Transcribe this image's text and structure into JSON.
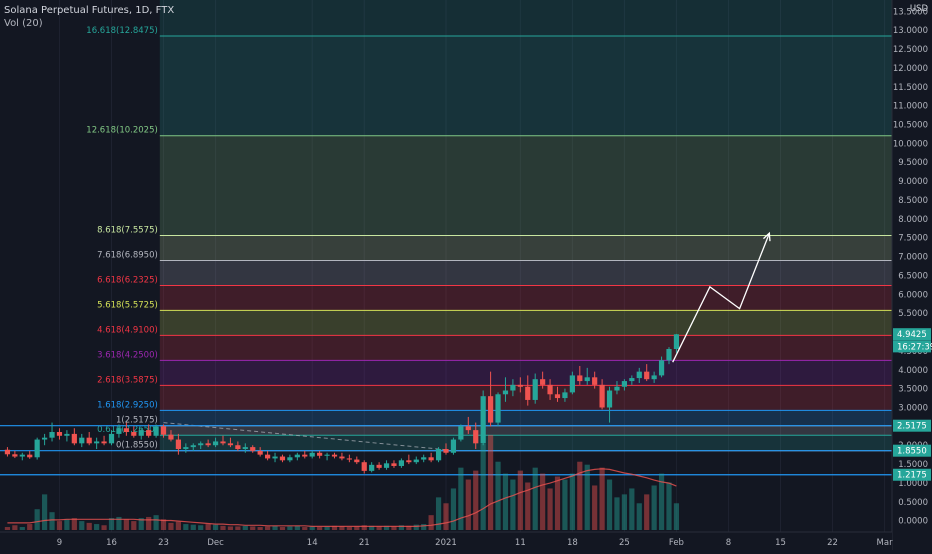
{
  "header": {
    "title": "Solana Perpetual Futures, 1D, FTX",
    "indicator": "Vol (20)",
    "currency": "USD"
  },
  "chart_data": {
    "type": "candlestick",
    "price_axis": {
      "ylim": [
        -0.3,
        13.8
      ],
      "ticks": [
        "13.5000",
        "13.0000",
        "12.5000",
        "12.0000",
        "11.5000",
        "11.0000",
        "10.5000",
        "10.0000",
        "9.5000",
        "9.0000",
        "8.5000",
        "8.0000",
        "7.5000",
        "7.0000",
        "6.5000",
        "6.0000",
        "5.5000",
        "5.0000",
        "4.5000",
        "4.0000",
        "3.5000",
        "3.0000",
        "2.5000",
        "2.0000",
        "1.5000",
        "1.0000",
        "0.5000",
        "0.0000"
      ],
      "tick_values": [
        13.5,
        13.0,
        12.5,
        12.0,
        11.5,
        11.0,
        10.5,
        10.0,
        9.5,
        9.0,
        8.5,
        8.0,
        7.5,
        7.0,
        6.5,
        6.0,
        5.5,
        5.0,
        4.5,
        4.0,
        3.5,
        3.0,
        2.5,
        2.0,
        1.5,
        1.0,
        0.5,
        0.0
      ]
    },
    "time_axis": {
      "labels": [
        "9",
        "16",
        "23",
        "Dec",
        "14",
        "21",
        "2021",
        "11",
        "18",
        "25",
        "Feb",
        "8",
        "15",
        "22",
        "Mar"
      ],
      "label_days": [
        -52,
        -45,
        -38,
        -31,
        -18,
        -11,
        0,
        10,
        17,
        24,
        31,
        38,
        45,
        52,
        59
      ],
      "xlim": [
        -60,
        60
      ]
    },
    "fib_levels": [
      {
        "label": "16.618(12.8475)",
        "value": 12.8475,
        "color": "#26a69a"
      },
      {
        "label": "12.618(10.2025)",
        "value": 10.2025,
        "color": "#81c784"
      },
      {
        "label": "8.618(7.5575)",
        "value": 7.5575,
        "color": "#c8e6a0"
      },
      {
        "label": "7.618(6.8950)",
        "value": 6.895,
        "color": "#b2b5be"
      },
      {
        "label": "6.618(6.2325)",
        "value": 6.2325,
        "color": "#f23645"
      },
      {
        "label": "5.618(5.5725)",
        "value": 5.5725,
        "color": "#d4e157"
      },
      {
        "label": "4.618(4.9100)",
        "value": 4.91,
        "color": "#f23645"
      },
      {
        "label": "3.618(4.2500)",
        "value": 4.25,
        "color": "#9c27b0"
      },
      {
        "label": "2.618(3.5875)",
        "value": 3.5875,
        "color": "#f23645"
      },
      {
        "label": "1.618(2.9250)",
        "value": 2.925,
        "color": "#2196f3"
      },
      {
        "label": "1(2.5175)",
        "value": 2.5175,
        "color": "#b2b5be"
      },
      {
        "label": "0.618(2.2650)",
        "value": 2.265,
        "color": "#26a69a"
      },
      {
        "label": "0(1.8550)",
        "value": 1.855,
        "color": "#b2b5be"
      }
    ],
    "price_badges": [
      {
        "label": "4.9425",
        "value": 4.9425,
        "bg": "#26a69a"
      },
      {
        "label": "16:27:39",
        "value": 4.62,
        "bg": "#26a69a"
      },
      {
        "label": "2.5175",
        "value": 2.5175,
        "bg": "#26a69a"
      },
      {
        "label": "1.8550",
        "value": 1.855,
        "bg": "#26a69a"
      },
      {
        "label": "1.2175",
        "value": 1.2175,
        "bg": "#26a69a"
      }
    ],
    "horizontal_lines": [
      2.5175,
      1.855,
      1.2175
    ],
    "fib_zone_start_day": -38.5,
    "candles": [
      {
        "d": -59,
        "o": 1.88,
        "h": 1.95,
        "l": 1.7,
        "c": 1.76
      },
      {
        "d": -58,
        "o": 1.76,
        "h": 1.85,
        "l": 1.66,
        "c": 1.7
      },
      {
        "d": -57,
        "o": 1.7,
        "h": 1.8,
        "l": 1.6,
        "c": 1.75
      },
      {
        "d": -56,
        "o": 1.75,
        "h": 1.85,
        "l": 1.64,
        "c": 1.68
      },
      {
        "d": -55,
        "o": 1.68,
        "h": 2.2,
        "l": 1.62,
        "c": 2.15
      },
      {
        "d": -54,
        "o": 2.15,
        "h": 2.3,
        "l": 2.0,
        "c": 2.2
      },
      {
        "d": -53,
        "o": 2.2,
        "h": 2.6,
        "l": 2.1,
        "c": 2.35
      },
      {
        "d": -52,
        "o": 2.35,
        "h": 2.45,
        "l": 2.15,
        "c": 2.25
      },
      {
        "d": -51,
        "o": 2.25,
        "h": 2.4,
        "l": 2.1,
        "c": 2.3
      },
      {
        "d": -50,
        "o": 2.3,
        "h": 2.45,
        "l": 2.0,
        "c": 2.05
      },
      {
        "d": -49,
        "o": 2.05,
        "h": 2.3,
        "l": 1.95,
        "c": 2.2
      },
      {
        "d": -48,
        "o": 2.2,
        "h": 2.35,
        "l": 2.0,
        "c": 2.05
      },
      {
        "d": -47,
        "o": 2.05,
        "h": 2.2,
        "l": 1.9,
        "c": 2.1
      },
      {
        "d": -46,
        "o": 2.1,
        "h": 2.25,
        "l": 2.0,
        "c": 2.05
      },
      {
        "d": -45,
        "o": 2.05,
        "h": 2.4,
        "l": 2.0,
        "c": 2.3
      },
      {
        "d": -44,
        "o": 2.3,
        "h": 2.55,
        "l": 2.2,
        "c": 2.45
      },
      {
        "d": -43,
        "o": 2.45,
        "h": 2.6,
        "l": 2.25,
        "c": 2.35
      },
      {
        "d": -42,
        "o": 2.35,
        "h": 2.5,
        "l": 2.2,
        "c": 2.25
      },
      {
        "d": -41,
        "o": 2.25,
        "h": 2.45,
        "l": 2.15,
        "c": 2.4
      },
      {
        "d": -40,
        "o": 2.4,
        "h": 2.55,
        "l": 2.2,
        "c": 2.25
      },
      {
        "d": -39,
        "o": 2.25,
        "h": 2.55,
        "l": 2.2,
        "c": 2.5
      },
      {
        "d": -38,
        "o": 2.5,
        "h": 2.55,
        "l": 2.2,
        "c": 2.28
      },
      {
        "d": -37,
        "o": 2.28,
        "h": 2.4,
        "l": 2.1,
        "c": 2.15
      },
      {
        "d": -36,
        "o": 2.15,
        "h": 2.3,
        "l": 1.75,
        "c": 1.9
      },
      {
        "d": -35,
        "o": 1.9,
        "h": 2.05,
        "l": 1.8,
        "c": 1.95
      },
      {
        "d": -34,
        "o": 1.95,
        "h": 2.05,
        "l": 1.85,
        "c": 2.0
      },
      {
        "d": -33,
        "o": 2.0,
        "h": 2.1,
        "l": 1.9,
        "c": 2.05
      },
      {
        "d": -32,
        "o": 2.05,
        "h": 2.15,
        "l": 1.95,
        "c": 2.0
      },
      {
        "d": -31,
        "o": 2.0,
        "h": 2.2,
        "l": 1.95,
        "c": 2.1
      },
      {
        "d": -30,
        "o": 2.1,
        "h": 2.25,
        "l": 2.0,
        "c": 2.05
      },
      {
        "d": -29,
        "o": 2.05,
        "h": 2.2,
        "l": 1.95,
        "c": 2.0
      },
      {
        "d": -28,
        "o": 2.0,
        "h": 2.1,
        "l": 1.85,
        "c": 1.9
      },
      {
        "d": -27,
        "o": 1.9,
        "h": 2.05,
        "l": 1.8,
        "c": 1.95
      },
      {
        "d": -26,
        "o": 1.95,
        "h": 2.0,
        "l": 1.8,
        "c": 1.85
      },
      {
        "d": -25,
        "o": 1.85,
        "h": 1.95,
        "l": 1.7,
        "c": 1.75
      },
      {
        "d": -24,
        "o": 1.75,
        "h": 1.85,
        "l": 1.6,
        "c": 1.65
      },
      {
        "d": -23,
        "o": 1.65,
        "h": 1.8,
        "l": 1.55,
        "c": 1.7
      },
      {
        "d": -22,
        "o": 1.7,
        "h": 1.75,
        "l": 1.55,
        "c": 1.6
      },
      {
        "d": -21,
        "o": 1.6,
        "h": 1.75,
        "l": 1.55,
        "c": 1.68
      },
      {
        "d": -20,
        "o": 1.68,
        "h": 1.8,
        "l": 1.6,
        "c": 1.75
      },
      {
        "d": -19,
        "o": 1.75,
        "h": 1.85,
        "l": 1.65,
        "c": 1.7
      },
      {
        "d": -18,
        "o": 1.7,
        "h": 1.85,
        "l": 1.65,
        "c": 1.8
      },
      {
        "d": -17,
        "o": 1.8,
        "h": 1.85,
        "l": 1.65,
        "c": 1.72
      },
      {
        "d": -16,
        "o": 1.72,
        "h": 1.8,
        "l": 1.6,
        "c": 1.75
      },
      {
        "d": -15,
        "o": 1.75,
        "h": 1.8,
        "l": 1.65,
        "c": 1.7
      },
      {
        "d": -14,
        "o": 1.7,
        "h": 1.8,
        "l": 1.6,
        "c": 1.65
      },
      {
        "d": -13,
        "o": 1.65,
        "h": 1.75,
        "l": 1.55,
        "c": 1.62
      },
      {
        "d": -12,
        "o": 1.62,
        "h": 1.7,
        "l": 1.5,
        "c": 1.55
      },
      {
        "d": -11,
        "o": 1.55,
        "h": 1.6,
        "l": 1.25,
        "c": 1.32
      },
      {
        "d": -10,
        "o": 1.32,
        "h": 1.55,
        "l": 1.28,
        "c": 1.48
      },
      {
        "d": -9,
        "o": 1.48,
        "h": 1.55,
        "l": 1.35,
        "c": 1.4
      },
      {
        "d": -8,
        "o": 1.4,
        "h": 1.6,
        "l": 1.35,
        "c": 1.52
      },
      {
        "d": -7,
        "o": 1.52,
        "h": 1.6,
        "l": 1.4,
        "c": 1.45
      },
      {
        "d": -6,
        "o": 1.45,
        "h": 1.65,
        "l": 1.4,
        "c": 1.6
      },
      {
        "d": -5,
        "o": 1.6,
        "h": 1.75,
        "l": 1.5,
        "c": 1.55
      },
      {
        "d": -4,
        "o": 1.55,
        "h": 1.7,
        "l": 1.5,
        "c": 1.62
      },
      {
        "d": -3,
        "o": 1.62,
        "h": 1.75,
        "l": 1.55,
        "c": 1.68
      },
      {
        "d": -2,
        "o": 1.68,
        "h": 1.8,
        "l": 1.55,
        "c": 1.6
      },
      {
        "d": -1,
        "o": 1.6,
        "h": 1.95,
        "l": 1.55,
        "c": 1.9
      },
      {
        "d": 0,
        "o": 1.9,
        "h": 2.05,
        "l": 1.75,
        "c": 1.8
      },
      {
        "d": 1,
        "o": 1.8,
        "h": 2.2,
        "l": 1.75,
        "c": 2.15
      },
      {
        "d": 2,
        "o": 2.15,
        "h": 2.55,
        "l": 2.1,
        "c": 2.5
      },
      {
        "d": 3,
        "o": 2.5,
        "h": 2.75,
        "l": 2.3,
        "c": 2.4
      },
      {
        "d": 4,
        "o": 2.4,
        "h": 2.6,
        "l": 1.9,
        "c": 2.05
      },
      {
        "d": 5,
        "o": 2.05,
        "h": 3.45,
        "l": 2.0,
        "c": 3.3
      },
      {
        "d": 6,
        "o": 3.3,
        "h": 3.95,
        "l": 2.5,
        "c": 2.6
      },
      {
        "d": 7,
        "o": 2.6,
        "h": 3.4,
        "l": 2.5,
        "c": 3.35
      },
      {
        "d": 8,
        "o": 3.35,
        "h": 3.8,
        "l": 3.15,
        "c": 3.45
      },
      {
        "d": 9,
        "o": 3.45,
        "h": 3.75,
        "l": 3.3,
        "c": 3.6
      },
      {
        "d": 10,
        "o": 3.6,
        "h": 3.8,
        "l": 3.4,
        "c": 3.55
      },
      {
        "d": 11,
        "o": 3.55,
        "h": 3.85,
        "l": 3.05,
        "c": 3.2
      },
      {
        "d": 12,
        "o": 3.2,
        "h": 3.9,
        "l": 3.1,
        "c": 3.75
      },
      {
        "d": 13,
        "o": 3.75,
        "h": 3.95,
        "l": 3.5,
        "c": 3.6
      },
      {
        "d": 14,
        "o": 3.6,
        "h": 3.75,
        "l": 3.2,
        "c": 3.35
      },
      {
        "d": 15,
        "o": 3.35,
        "h": 3.55,
        "l": 3.15,
        "c": 3.25
      },
      {
        "d": 16,
        "o": 3.25,
        "h": 3.5,
        "l": 3.15,
        "c": 3.4
      },
      {
        "d": 17,
        "o": 3.4,
        "h": 3.95,
        "l": 3.35,
        "c": 3.85
      },
      {
        "d": 18,
        "o": 3.85,
        "h": 4.1,
        "l": 3.6,
        "c": 3.7
      },
      {
        "d": 19,
        "o": 3.7,
        "h": 4.05,
        "l": 3.6,
        "c": 3.8
      },
      {
        "d": 20,
        "o": 3.8,
        "h": 3.95,
        "l": 3.5,
        "c": 3.6
      },
      {
        "d": 21,
        "o": 3.6,
        "h": 3.75,
        "l": 2.95,
        "c": 3.0
      },
      {
        "d": 22,
        "o": 3.0,
        "h": 3.55,
        "l": 2.6,
        "c": 3.45
      },
      {
        "d": 23,
        "o": 3.45,
        "h": 3.7,
        "l": 3.35,
        "c": 3.55
      },
      {
        "d": 24,
        "o": 3.55,
        "h": 3.75,
        "l": 3.45,
        "c": 3.7
      },
      {
        "d": 25,
        "o": 3.7,
        "h": 3.85,
        "l": 3.6,
        "c": 3.78
      },
      {
        "d": 26,
        "o": 3.78,
        "h": 4.05,
        "l": 3.65,
        "c": 3.95
      },
      {
        "d": 27,
        "o": 3.95,
        "h": 4.15,
        "l": 3.7,
        "c": 3.75
      },
      {
        "d": 28,
        "o": 3.75,
        "h": 3.95,
        "l": 3.65,
        "c": 3.85
      },
      {
        "d": 29,
        "o": 3.85,
        "h": 4.35,
        "l": 3.8,
        "c": 4.25
      },
      {
        "d": 30,
        "o": 4.25,
        "h": 4.6,
        "l": 4.15,
        "c": 4.55
      },
      {
        "d": 31,
        "o": 4.55,
        "h": 4.95,
        "l": 4.45,
        "c": 4.94
      }
    ],
    "volume": {
      "ylim": [
        0,
        1.6
      ],
      "values": [
        0.05,
        0.08,
        0.05,
        0.1,
        0.35,
        0.6,
        0.3,
        0.15,
        0.18,
        0.2,
        0.15,
        0.12,
        0.1,
        0.08,
        0.2,
        0.22,
        0.18,
        0.15,
        0.2,
        0.22,
        0.25,
        0.18,
        0.12,
        0.14,
        0.1,
        0.09,
        0.08,
        0.1,
        0.09,
        0.07,
        0.06,
        0.06,
        0.07,
        0.06,
        0.05,
        0.06,
        0.07,
        0.05,
        0.06,
        0.07,
        0.05,
        0.06,
        0.05,
        0.06,
        0.07,
        0.06,
        0.05,
        0.06,
        0.08,
        0.07,
        0.06,
        0.07,
        0.06,
        0.08,
        0.07,
        0.09,
        0.1,
        0.25,
        0.55,
        0.45,
        0.7,
        1.05,
        0.85,
        1.0,
        1.45,
        1.6,
        1.15,
        0.95,
        0.85,
        1.0,
        0.8,
        1.05,
        0.95,
        0.7,
        0.9,
        0.85,
        0.95,
        1.15,
        1.1,
        0.75,
        1.05,
        0.85,
        0.55,
        0.6,
        0.7,
        0.45,
        0.6,
        0.75,
        0.95,
        0.8,
        0.45
      ],
      "ma_values": [
        0.12,
        0.12,
        0.12,
        0.12,
        0.14,
        0.16,
        0.17,
        0.17,
        0.18,
        0.18,
        0.18,
        0.18,
        0.18,
        0.18,
        0.18,
        0.18,
        0.18,
        0.18,
        0.17,
        0.17,
        0.17,
        0.16,
        0.16,
        0.15,
        0.14,
        0.13,
        0.12,
        0.11,
        0.1,
        0.1,
        0.09,
        0.09,
        0.08,
        0.08,
        0.08,
        0.07,
        0.07,
        0.07,
        0.07,
        0.07,
        0.07,
        0.06,
        0.06,
        0.06,
        0.06,
        0.06,
        0.06,
        0.06,
        0.06,
        0.06,
        0.06,
        0.06,
        0.06,
        0.06,
        0.06,
        0.06,
        0.07,
        0.08,
        0.1,
        0.12,
        0.15,
        0.2,
        0.24,
        0.29,
        0.36,
        0.44,
        0.49,
        0.54,
        0.58,
        0.63,
        0.67,
        0.72,
        0.76,
        0.79,
        0.83,
        0.87,
        0.91,
        0.96,
        1.0,
        1.02,
        1.03,
        1.02,
        0.99,
        0.96,
        0.94,
        0.91,
        0.88,
        0.84,
        0.81,
        0.79,
        0.74
      ]
    },
    "projection_path": [
      {
        "d": 30.5,
        "v": 4.2
      },
      {
        "d": 35.5,
        "v": 6.2
      },
      {
        "d": 39.5,
        "v": 5.62
      },
      {
        "d": 43.5,
        "v": 7.62
      }
    ],
    "dashed_trendline": [
      {
        "d": -38,
        "v": 2.6
      },
      {
        "d": 0,
        "v": 1.88
      }
    ]
  }
}
